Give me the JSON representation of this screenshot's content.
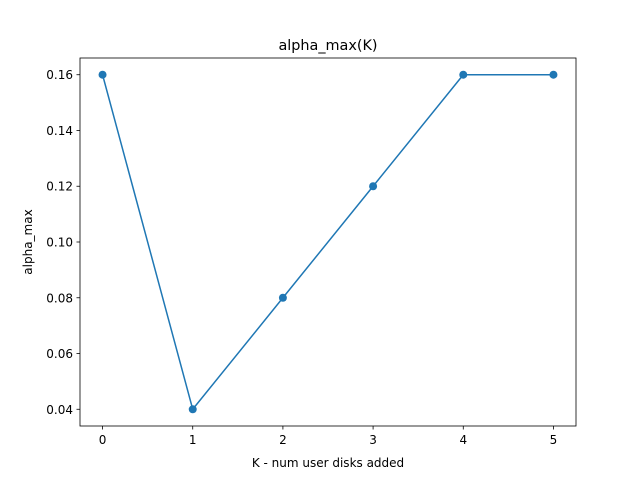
{
  "chart_data": {
    "type": "line",
    "title": "alpha_max(K)",
    "xlabel": "K - num user disks added",
    "ylabel": "alpha_max",
    "x": [
      0,
      1,
      2,
      3,
      4,
      5
    ],
    "series": [
      {
        "values": [
          0.16,
          0.04,
          0.08,
          0.12,
          0.16,
          0.16
        ],
        "color": "#1f77b4",
        "marker": "circle"
      }
    ],
    "xlim": [
      -0.25,
      5.25
    ],
    "ylim": [
      0.034,
      0.166
    ],
    "xticks": [
      0,
      1,
      2,
      3,
      4,
      5
    ],
    "xtick_labels": [
      "0",
      "1",
      "2",
      "3",
      "4",
      "5"
    ],
    "yticks": [
      0.04,
      0.06,
      0.08,
      0.1,
      0.12,
      0.14,
      0.16
    ],
    "ytick_labels": [
      "0.04",
      "0.06",
      "0.08",
      "0.10",
      "0.12",
      "0.14",
      "0.16"
    ],
    "grid": false,
    "legend": "none"
  }
}
